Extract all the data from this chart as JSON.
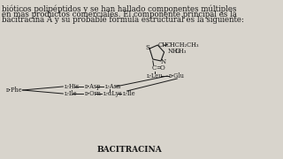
{
  "bg_color": "#d8d4cc",
  "text_color": "#1a1a1a",
  "top_text_lines": [
    "bióticos polipéptidos y se han hallado componentes múltiples",
    "en más productos comerciales. El componente principal es la",
    "bacitracina A y su probable fórmula estructural es la siguiente:"
  ],
  "bottom_label": "BACITRACINA",
  "fig_width": 3.2,
  "fig_height": 1.8,
  "dpi": 100
}
